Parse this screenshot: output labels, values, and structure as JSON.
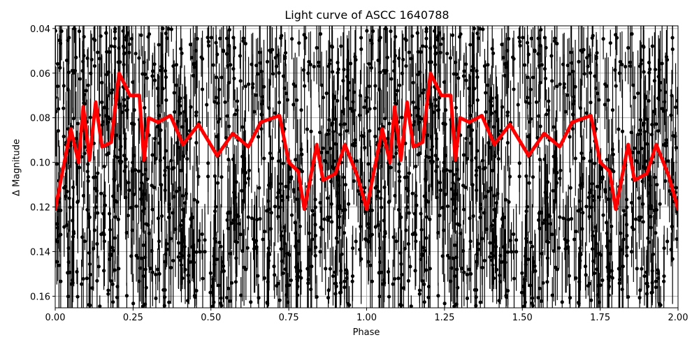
{
  "chart_data": {
    "type": "scatter",
    "title": "Light curve of ASCC 1640788",
    "xlabel": "Phase",
    "ylabel": "Δ Magnitude",
    "xlim": [
      0.0,
      2.0
    ],
    "ylim": [
      0.1652,
      0.0388
    ],
    "y_inverted": true,
    "grid": true,
    "legend": null,
    "x_ticks": [
      "0.00",
      "0.25",
      "0.50",
      "0.75",
      "1.00",
      "1.25",
      "1.50",
      "1.75",
      "2.00"
    ],
    "y_ticks": [
      "0.04",
      "0.06",
      "0.08",
      "0.10",
      "0.12",
      "0.14",
      "0.16"
    ],
    "series": [
      {
        "name": "observations",
        "style": "black points with vertical error bars",
        "color": "#000000",
        "description": "dense phase-folded photometry scattered roughly between 0.04 and 0.165 mag, repeated over two cycles"
      },
      {
        "name": "binned model",
        "style": "thick red line",
        "color": "#ff0000",
        "x": [
          0.0,
          0.05,
          0.075,
          0.09,
          0.11,
          0.13,
          0.15,
          0.18,
          0.205,
          0.24,
          0.27,
          0.285,
          0.3,
          0.33,
          0.37,
          0.41,
          0.46,
          0.52,
          0.57,
          0.62,
          0.66,
          0.72,
          0.75,
          0.78,
          0.8,
          0.84,
          0.86,
          0.9,
          0.93,
          0.97,
          1.0
        ],
        "values": [
          0.121,
          0.085,
          0.1,
          0.075,
          0.099,
          0.073,
          0.093,
          0.091,
          0.06,
          0.07,
          0.07,
          0.099,
          0.08,
          0.082,
          0.079,
          0.092,
          0.083,
          0.097,
          0.087,
          0.093,
          0.082,
          0.079,
          0.1,
          0.104,
          0.121,
          0.092,
          0.108,
          0.105,
          0.092,
          0.106,
          0.121
        ]
      }
    ]
  },
  "colors": {
    "data_points": "#000000",
    "model_line": "#ff0000",
    "grid": "#b0b0b0",
    "background": "#ffffff"
  }
}
